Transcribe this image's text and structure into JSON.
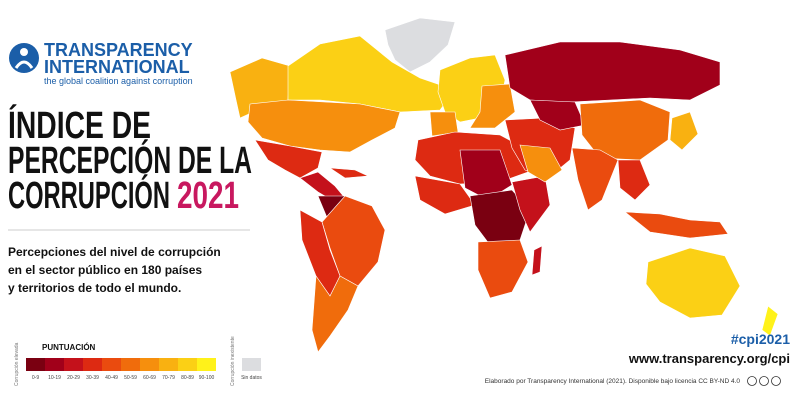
{
  "logo": {
    "line1": "TRANSPARENCY",
    "line2": "INTERNATIONAL",
    "tagline": "the global coalition against corruption"
  },
  "title": {
    "line1": "ÍNDICE DE",
    "line2": "PERCEPCIÓN DE LA",
    "line3": "CORRUPCIÓN",
    "year": "2021"
  },
  "subtitle": [
    "Percepciones del nivel de corrupción",
    "en el sector público en 180 países",
    "y territorios de todo el mundo."
  ],
  "legend": {
    "title": "PUNTUACIÓN",
    "low_label": "Corrupción elevada",
    "high_label": "Corrupción inexistente",
    "items": [
      {
        "label": "0-9",
        "color": "#7a0011"
      },
      {
        "label": "10-19",
        "color": "#a1001a"
      },
      {
        "label": "20-29",
        "color": "#c4111b"
      },
      {
        "label": "30-39",
        "color": "#dd2a12"
      },
      {
        "label": "40-49",
        "color": "#ea4b0f"
      },
      {
        "label": "50-59",
        "color": "#f06c0c"
      },
      {
        "label": "60-69",
        "color": "#f68f0d"
      },
      {
        "label": "70-79",
        "color": "#f9b111"
      },
      {
        "label": "80-89",
        "color": "#fbd015"
      },
      {
        "label": "90-100",
        "color": "#fff21a"
      }
    ],
    "no_data": {
      "label": "Sin datos",
      "color": "#dcdde0"
    }
  },
  "hashtag": "#cpi2021",
  "url": "www.transparency.org/cpi",
  "credit": "Elaborado por Transparency International (2021). Disponible bajo licencia CC BY-ND 4.0"
}
